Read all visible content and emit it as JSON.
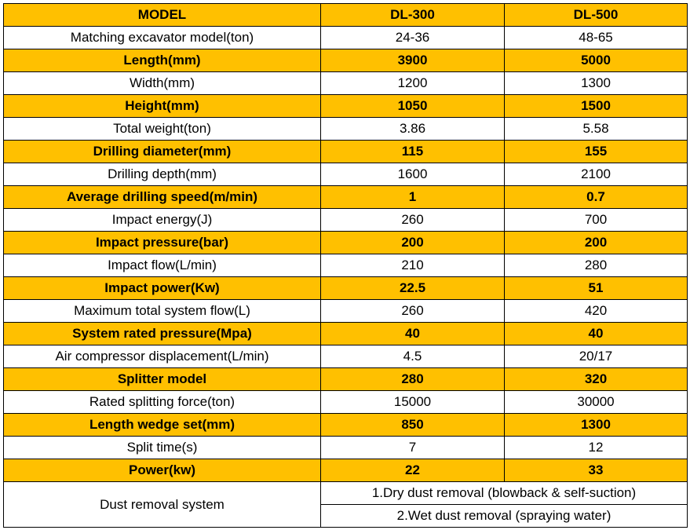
{
  "header": {
    "label": "MODEL",
    "col1": "DL-300",
    "col2": "DL-500"
  },
  "rows": [
    {
      "label": "Matching excavator model(ton)",
      "v1": "24-36",
      "v2": "48-65",
      "highlight": false
    },
    {
      "label": "Length(mm)",
      "v1": "3900",
      "v2": "5000",
      "highlight": true
    },
    {
      "label": "Width(mm)",
      "v1": "1200",
      "v2": "1300",
      "highlight": false
    },
    {
      "label": "Height(mm)",
      "v1": "1050",
      "v2": "1500",
      "highlight": true
    },
    {
      "label": "Total weight(ton)",
      "v1": "3.86",
      "v2": "5.58",
      "highlight": false
    },
    {
      "label": "Drilling diameter(mm)",
      "v1": "115",
      "v2": "155",
      "highlight": true
    },
    {
      "label": "Drilling depth(mm)",
      "v1": "1600",
      "v2": "2100",
      "highlight": false
    },
    {
      "label": "Average drilling speed(m/min)",
      "v1": "1",
      "v2": "0.7",
      "highlight": true
    },
    {
      "label": "Impact energy(J)",
      "v1": "260",
      "v2": "700",
      "highlight": false
    },
    {
      "label": "Impact pressure(bar)",
      "v1": "200",
      "v2": "200",
      "highlight": true
    },
    {
      "label": "Impact flow(L/min)",
      "v1": "210",
      "v2": "280",
      "highlight": false
    },
    {
      "label": "Impact power(Kw)",
      "v1": "22.5",
      "v2": "51",
      "highlight": true
    },
    {
      "label": "Maximum total system flow(L)",
      "v1": "260",
      "v2": "420",
      "highlight": false
    },
    {
      "label": "System rated pressure(Mpa)",
      "v1": "40",
      "v2": "40",
      "highlight": true
    },
    {
      "label": "Air compressor displacement(L/min)",
      "v1": "4.5",
      "v2": "20/17",
      "highlight": false
    },
    {
      "label": "Splitter model",
      "v1": "280",
      "v2": "320",
      "highlight": true
    },
    {
      "label": "Rated splitting force(ton)",
      "v1": "15000",
      "v2": "30000",
      "highlight": false
    },
    {
      "label": "Length wedge set(mm)",
      "v1": "850",
      "v2": "1300",
      "highlight": true
    },
    {
      "label": "Split time(s)",
      "v1": "7",
      "v2": "12",
      "highlight": false
    },
    {
      "label": "Power(kw)",
      "v1": "22",
      "v2": "33",
      "highlight": true
    }
  ],
  "dust": {
    "label": "Dust removal system",
    "items": [
      "1.Dry dust removal (blowback & self-suction)",
      "2.Wet dust removal (spraying water)"
    ]
  },
  "colors": {
    "highlight": "#FFC000",
    "plain": "#FFFFFF",
    "border": "#000000"
  }
}
